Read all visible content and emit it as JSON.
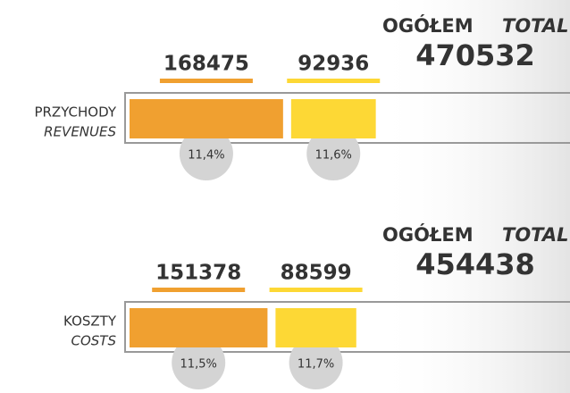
{
  "chart_data": [
    {
      "type": "bar",
      "label": "PRZYCHODY",
      "label_en": "REVENUES",
      "total_label": "OGÓŁEM",
      "total_label_en": "TOTAL",
      "total": 470532,
      "values": [
        168475,
        92936
      ],
      "colors": [
        "#f0a030",
        "#fdd835"
      ],
      "shares": [
        {
          "value": 11.4,
          "label": "11,4%"
        },
        {
          "value": 11.6,
          "label": "11,6%"
        }
      ]
    },
    {
      "type": "bar",
      "label": "KOSZTY",
      "label_en": "COSTS",
      "total_label": "OGÓŁEM",
      "total_label_en": "TOTAL",
      "total": 454438,
      "values": [
        151378,
        88599
      ],
      "colors": [
        "#f0a030",
        "#fdd835"
      ],
      "shares": [
        {
          "value": 11.5,
          "label": "11,5%"
        },
        {
          "value": 11.7,
          "label": "11,7%"
        }
      ]
    }
  ]
}
